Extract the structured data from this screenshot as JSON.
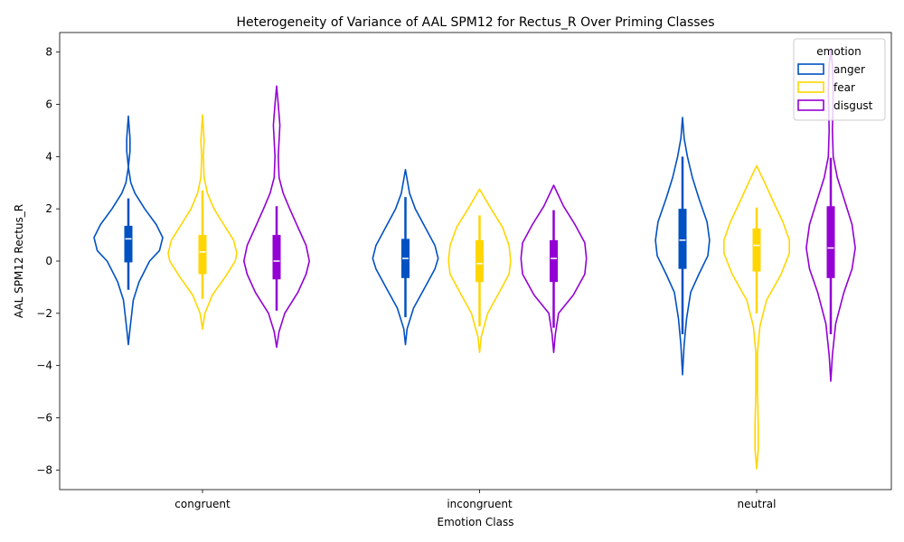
{
  "chart_data": {
    "type": "violin",
    "title": "Heterogeneity of Variance of AAL SPM12 for Rectus_R Over Priming Classes",
    "xlabel": "Emotion Class",
    "ylabel": "AAL SPM12 Rectus_R",
    "categories": [
      "congruent",
      "incongruent",
      "neutral"
    ],
    "ylim": [
      -8.75,
      8.75
    ],
    "yticks": [
      -8,
      -6,
      -4,
      -2,
      0,
      2,
      4,
      6,
      8
    ],
    "grid": false,
    "legend": {
      "title": "emotion",
      "placement": "top-right"
    },
    "series": [
      {
        "name": "anger",
        "color": "#0051c2",
        "violins": [
          {
            "min": -3.2,
            "max": 5.55,
            "q1": -0.05,
            "median": 0.85,
            "q3": 1.35,
            "whisker_low": -1.1,
            "whisker_high": 2.4,
            "density": [
              [
                -3.2,
                0.0
              ],
              [
                -2.6,
                0.02
              ],
              [
                -1.5,
                0.06
              ],
              [
                -0.8,
                0.13
              ],
              [
                0.0,
                0.26
              ],
              [
                0.4,
                0.38
              ],
              [
                0.9,
                0.42
              ],
              [
                1.4,
                0.34
              ],
              [
                2.0,
                0.2
              ],
              [
                2.6,
                0.08
              ],
              [
                3.0,
                0.03
              ],
              [
                3.6,
                0.0
              ],
              [
                4.2,
                0.02
              ],
              [
                4.7,
                0.02
              ],
              [
                5.55,
                0.0
              ]
            ]
          },
          {
            "min": -3.2,
            "max": 3.5,
            "q1": -0.65,
            "median": 0.1,
            "q3": 0.85,
            "whisker_low": -2.15,
            "whisker_high": 2.45,
            "density": [
              [
                -3.2,
                0.0
              ],
              [
                -2.6,
                0.02
              ],
              [
                -1.8,
                0.1
              ],
              [
                -1.0,
                0.24
              ],
              [
                -0.3,
                0.36
              ],
              [
                0.1,
                0.4
              ],
              [
                0.6,
                0.36
              ],
              [
                1.3,
                0.24
              ],
              [
                2.0,
                0.12
              ],
              [
                2.6,
                0.05
              ],
              [
                3.5,
                0.0
              ]
            ]
          },
          {
            "min": -4.35,
            "max": 5.5,
            "q1": -0.3,
            "median": 0.8,
            "q3": 2.0,
            "whisker_low": -2.8,
            "whisker_high": 4.0,
            "density": [
              [
                -4.35,
                0.0
              ],
              [
                -3.2,
                0.02
              ],
              [
                -2.2,
                0.05
              ],
              [
                -1.2,
                0.1
              ],
              [
                -0.5,
                0.2
              ],
              [
                0.2,
                0.31
              ],
              [
                0.8,
                0.33
              ],
              [
                1.5,
                0.3
              ],
              [
                2.4,
                0.2
              ],
              [
                3.2,
                0.12
              ],
              [
                4.0,
                0.06
              ],
              [
                4.7,
                0.02
              ],
              [
                5.5,
                0.0
              ]
            ]
          }
        ]
      },
      {
        "name": "fear",
        "color": "#ffd600",
        "violins": [
          {
            "min": -2.6,
            "max": 5.6,
            "q1": -0.5,
            "median": 0.35,
            "q3": 1.0,
            "whisker_low": -1.45,
            "whisker_high": 2.7,
            "density": [
              [
                -2.6,
                0.0
              ],
              [
                -2.0,
                0.03
              ],
              [
                -1.3,
                0.12
              ],
              [
                -0.6,
                0.28
              ],
              [
                0.0,
                0.4
              ],
              [
                0.3,
                0.42
              ],
              [
                0.8,
                0.38
              ],
              [
                1.4,
                0.26
              ],
              [
                2.0,
                0.14
              ],
              [
                2.6,
                0.06
              ],
              [
                3.2,
                0.02
              ],
              [
                4.0,
                0.01
              ],
              [
                4.6,
                0.02
              ],
              [
                5.6,
                0.0
              ]
            ]
          },
          {
            "min": -3.5,
            "max": 2.75,
            "q1": -0.8,
            "median": -0.1,
            "q3": 0.8,
            "whisker_low": -2.5,
            "whisker_high": 1.75,
            "density": [
              [
                -3.5,
                0.0
              ],
              [
                -2.9,
                0.02
              ],
              [
                -2.0,
                0.1
              ],
              [
                -1.2,
                0.24
              ],
              [
                -0.5,
                0.36
              ],
              [
                0.0,
                0.38
              ],
              [
                0.6,
                0.36
              ],
              [
                1.3,
                0.28
              ],
              [
                2.0,
                0.14
              ],
              [
                2.75,
                0.0
              ]
            ]
          },
          {
            "min": -7.95,
            "max": 3.65,
            "q1": -0.4,
            "median": 0.6,
            "q3": 1.25,
            "whisker_low": -2.0,
            "whisker_high": 2.05,
            "density": [
              [
                -7.95,
                0.0
              ],
              [
                -7.2,
                0.02
              ],
              [
                -6.3,
                0.02
              ],
              [
                -5.0,
                0.01
              ],
              [
                -3.5,
                0.01
              ],
              [
                -2.5,
                0.04
              ],
              [
                -1.5,
                0.12
              ],
              [
                -0.5,
                0.3
              ],
              [
                0.3,
                0.4
              ],
              [
                0.8,
                0.4
              ],
              [
                1.5,
                0.32
              ],
              [
                2.3,
                0.2
              ],
              [
                3.0,
                0.1
              ],
              [
                3.65,
                0.0
              ]
            ]
          }
        ]
      },
      {
        "name": "disgust",
        "color": "#9400d3",
        "violins": [
          {
            "min": -3.3,
            "max": 6.7,
            "q1": -0.7,
            "median": 0.0,
            "q3": 1.0,
            "whisker_low": -1.9,
            "whisker_high": 2.1,
            "density": [
              [
                -3.3,
                0.0
              ],
              [
                -2.7,
                0.03
              ],
              [
                -2.0,
                0.1
              ],
              [
                -1.2,
                0.26
              ],
              [
                -0.5,
                0.36
              ],
              [
                0.0,
                0.4
              ],
              [
                0.6,
                0.36
              ],
              [
                1.3,
                0.26
              ],
              [
                2.0,
                0.16
              ],
              [
                2.6,
                0.08
              ],
              [
                3.2,
                0.03
              ],
              [
                4.0,
                0.02
              ],
              [
                5.2,
                0.04
              ],
              [
                6.0,
                0.02
              ],
              [
                6.7,
                0.0
              ]
            ]
          },
          {
            "min": -3.5,
            "max": 2.9,
            "q1": -0.8,
            "median": 0.1,
            "q3": 0.8,
            "whisker_low": -2.55,
            "whisker_high": 1.95,
            "density": [
              [
                -3.5,
                0.0
              ],
              [
                -2.8,
                0.02
              ],
              [
                -2.0,
                0.06
              ],
              [
                -1.3,
                0.24
              ],
              [
                -0.5,
                0.38
              ],
              [
                0.1,
                0.4
              ],
              [
                0.7,
                0.38
              ],
              [
                1.4,
                0.26
              ],
              [
                2.1,
                0.12
              ],
              [
                2.9,
                0.0
              ]
            ]
          },
          {
            "min": -4.6,
            "max": 8.1,
            "q1": -0.65,
            "median": 0.5,
            "q3": 2.1,
            "whisker_low": -2.8,
            "whisker_high": 3.95,
            "density": [
              [
                -4.6,
                0.0
              ],
              [
                -3.6,
                0.02
              ],
              [
                -2.4,
                0.06
              ],
              [
                -1.2,
                0.16
              ],
              [
                -0.3,
                0.26
              ],
              [
                0.5,
                0.3
              ],
              [
                1.4,
                0.26
              ],
              [
                2.4,
                0.16
              ],
              [
                3.2,
                0.08
              ],
              [
                4.0,
                0.03
              ],
              [
                5.0,
                0.02
              ],
              [
                6.5,
                0.03
              ],
              [
                7.5,
                0.02
              ],
              [
                8.1,
                0.0
              ]
            ]
          }
        ]
      }
    ]
  }
}
